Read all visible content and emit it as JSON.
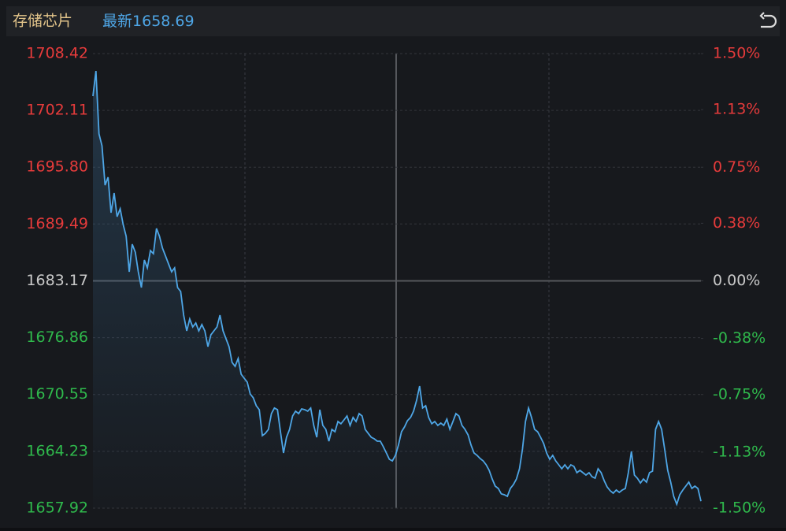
{
  "chart_data": {
    "type": "line",
    "title": "存储芯片",
    "latest_label": "最新",
    "latest": 1658.69,
    "color": "#4ea6e6",
    "up_color": "#e63b3b",
    "flat_color": "#c9c9c9",
    "down_color": "#2fb94c",
    "base": 1683.17,
    "ylim": [
      1657.92,
      1708.42
    ],
    "yticks": [
      1657.92,
      1664.23,
      1670.55,
      1676.86,
      1683.17,
      1689.49,
      {
        "value": 1695.8,
        "label": "1695.80"
      },
      1702.11,
      1708.42
    ],
    "y2lim": [
      -1.5,
      1.5
    ],
    "y2ticks": [
      {
        "value": -1.5,
        "label": "-1.50%"
      },
      {
        "value": -1.13,
        "label": "-1.13%"
      },
      {
        "value": -0.75,
        "label": "-0.75%"
      },
      {
        "value": -0.38,
        "label": "-0.38%"
      },
      {
        "value": 0,
        "label": "0.00%"
      },
      {
        "value": 0.38,
        "label": "0.38%"
      },
      {
        "value": 0.75,
        "label": "0.75%"
      },
      {
        "value": 1.13,
        "label": "1.13%"
      },
      {
        "value": 1.5,
        "label": "1.50%"
      }
    ],
    "grid": true,
    "values": [
      1703.69,
      1706.49,
      1699.49,
      1698.18,
      1693.8,
      1694.68,
      1690.74,
      1692.93,
      1690.3,
      1691.18,
      1689.43,
      1688.12,
      1684.18,
      1687.24,
      1686.36,
      1684.18,
      1682.43,
      1685.49,
      1684.61,
      1686.54,
      1686.19,
      1688.99,
      1688.12,
      1686.8,
      1685.93,
      1685.05,
      1684.18,
      1684.61,
      1682.43,
      1681.99,
      1679.36,
      1677.61,
      1678.93,
      1678.05,
      1678.49,
      1677.61,
      1678.31,
      1677.61,
      1675.86,
      1677.18,
      1677.61,
      1678.05,
      1679.36,
      1677.61,
      1676.74,
      1675.86,
      1674.11,
      1673.67,
      1674.55,
      1672.8,
      1672.36,
      1671.92,
      1670.61,
      1670.17,
      1669.3,
      1668.86,
      1665.97,
      1666.23,
      1666.67,
      1668.42,
      1669.04,
      1668.86,
      1666.41,
      1664.05,
      1665.8,
      1666.67,
      1668.16,
      1668.69,
      1668.42,
      1668.95,
      1668.86,
      1668.69,
      1669.04,
      1667.11,
      1665.8,
      1668.86,
      1667.11,
      1666.67,
      1665.36,
      1666.67,
      1666.41,
      1667.55,
      1667.29,
      1667.72,
      1668.16,
      1667.11,
      1667.99,
      1667.55,
      1668.42,
      1668.16,
      1666.67,
      1666.23,
      1665.8,
      1665.62,
      1665.36,
      1665.36,
      1664.75,
      1664.05,
      1663.35,
      1663.17,
      1663.78,
      1664.92,
      1666.41,
      1666.94,
      1667.64,
      1667.99,
      1668.69,
      1669.91,
      1671.49,
      1669.04,
      1669.3,
      1667.99,
      1667.29,
      1667.55,
      1667.11,
      1667.37,
      1667.11,
      1667.81,
      1666.67,
      1667.55,
      1668.42,
      1668.16,
      1667.11,
      1666.67,
      1666.06,
      1664.92,
      1664.05,
      1663.78,
      1663.43,
      1663.17,
      1662.73,
      1662.12,
      1661.16,
      1660.37,
      1660.11,
      1659.5,
      1659.41,
      1659.23,
      1660.11,
      1660.55,
      1661.16,
      1662.3,
      1664.48,
      1667.55,
      1669.04,
      1667.99,
      1666.67,
      1666.41,
      1665.8,
      1665.1,
      1664.05,
      1663.35,
      1663.78,
      1663.17,
      1662.73,
      1662.3,
      1662.73,
      1662.3,
      1662.73,
      1662.56,
      1661.86,
      1662.12,
      1661.86,
      1661.6,
      1661.86,
      1661.42,
      1661.25,
      1662.3,
      1661.86,
      1660.98,
      1660.28,
      1659.85,
      1659.58,
      1659.93,
      1659.67,
      1659.93,
      1660.11,
      1661.86,
      1664.22,
      1661.6,
      1661.25,
      1660.72,
      1661.16,
      1660.81,
      1661.86,
      1662.03,
      1666.67,
      1667.55,
      1666.67,
      1664.48,
      1662.12,
      1660.81,
      1659.23,
      1658.36,
      1659.41,
      1659.93,
      1660.37,
      1660.81,
      1660.11,
      1660.37,
      1660.11,
      1658.69
    ]
  }
}
